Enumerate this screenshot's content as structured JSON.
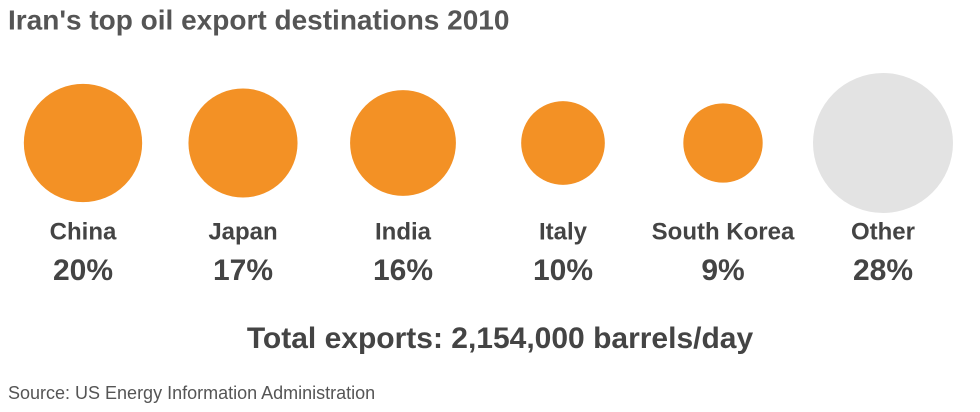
{
  "chart_data": {
    "type": "proportional-circles",
    "title": "Iran's top oil export destinations 2010",
    "categories": [
      "China",
      "Japan",
      "India",
      "Italy",
      "South Korea",
      "Other"
    ],
    "values": [
      20,
      17,
      16,
      10,
      9,
      28
    ],
    "value_labels": [
      "20%",
      "17%",
      "16%",
      "10%",
      "9%",
      "28%"
    ],
    "colors": [
      "#f39125",
      "#f39125",
      "#f39125",
      "#f39125",
      "#f39125",
      "#e3e3e3"
    ],
    "note": "Total exports: 2,154,000 barrels/day",
    "source": "Source: US Energy Information Administration"
  }
}
